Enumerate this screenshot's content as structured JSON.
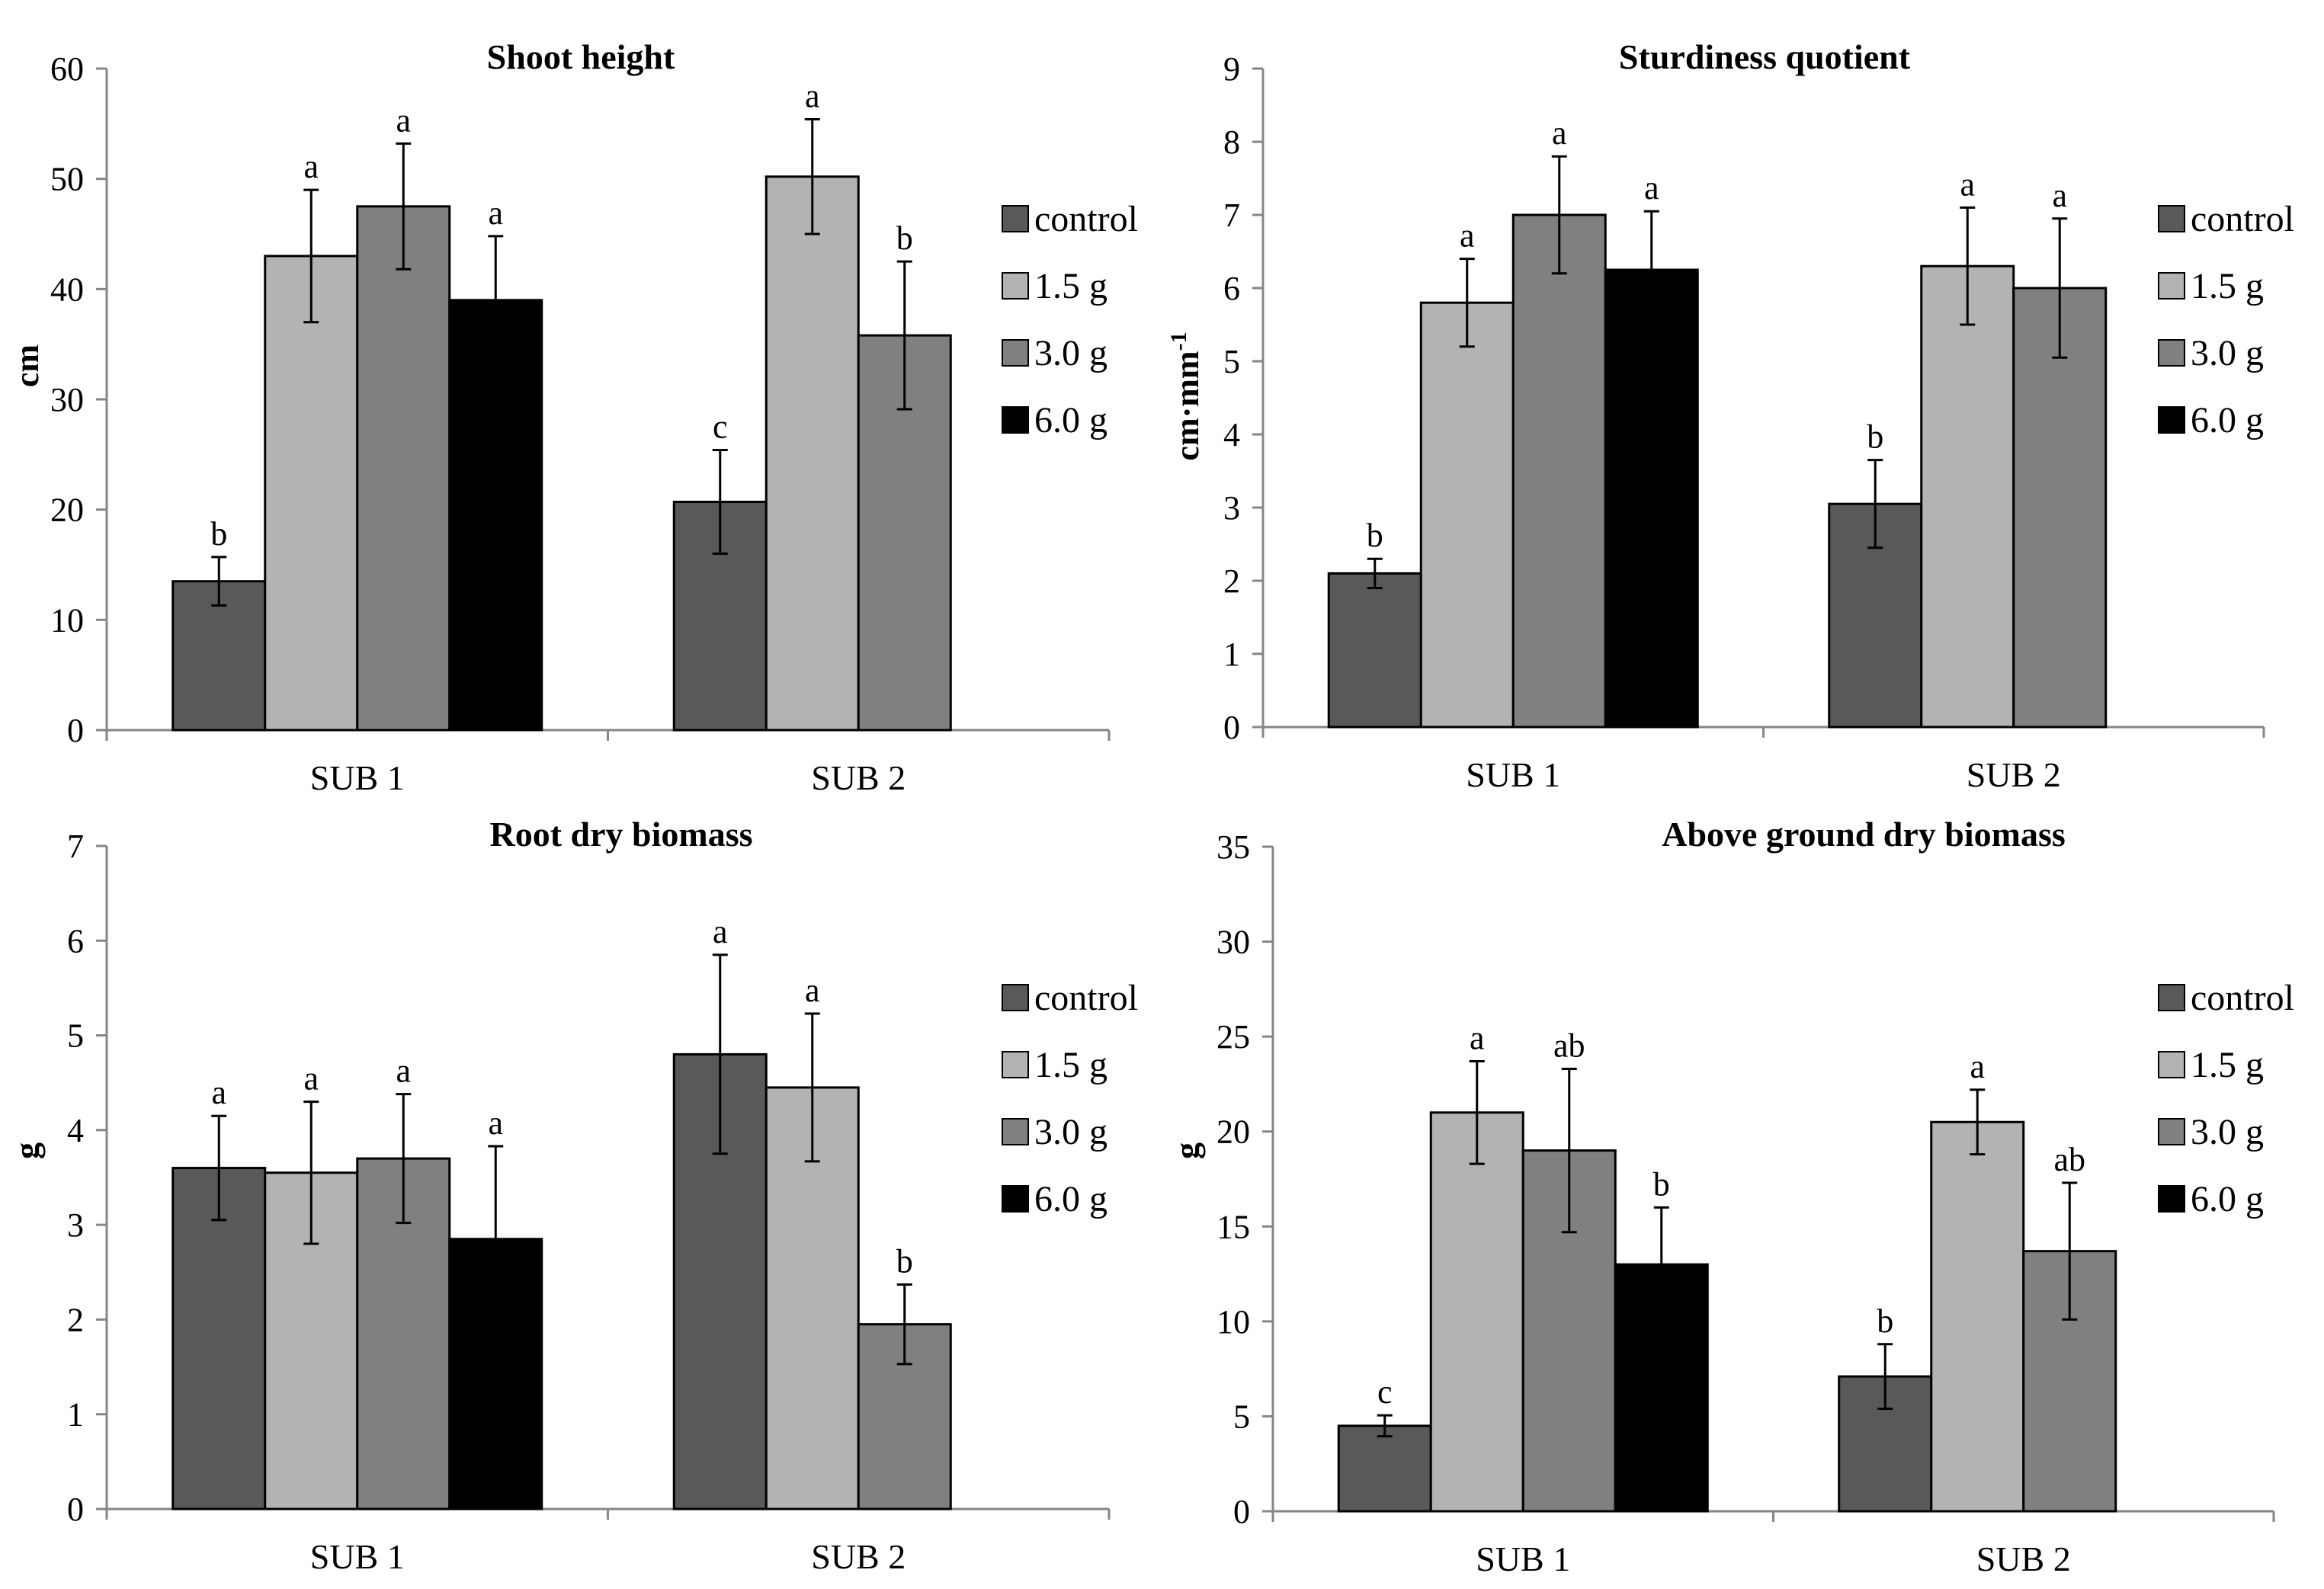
{
  "chart_data": [
    {
      "type": "bar",
      "title": "Shoot height",
      "xlabel": "",
      "ylabel": "cm",
      "ylabel_sup": "",
      "ylim": [
        0,
        60
      ],
      "yticks": [
        0,
        10,
        20,
        30,
        40,
        50,
        60
      ],
      "categories": [
        "SUB 1",
        "SUB 2"
      ],
      "series": [
        {
          "name": "control",
          "color": "#595959",
          "values": [
            13.5,
            20.7
          ],
          "errors": [
            2.2,
            4.7
          ],
          "letters": [
            "b",
            "c"
          ]
        },
        {
          "name": "1.5 g",
          "color": "#b3b3b3",
          "values": [
            43.0,
            50.2
          ],
          "errors": [
            6.0,
            5.2
          ],
          "letters": [
            "a",
            "a"
          ]
        },
        {
          "name": "3.0 g",
          "color": "#808080",
          "values": [
            47.5,
            35.8
          ],
          "errors": [
            5.7,
            6.7
          ],
          "letters": [
            "a",
            "b"
          ]
        },
        {
          "name": "6.0 g",
          "color": "#000000",
          "values": [
            39.0,
            null
          ],
          "errors": [
            5.8,
            null
          ],
          "letters": [
            "a",
            null
          ]
        }
      ]
    },
    {
      "type": "bar",
      "title": "Sturdiness quotient",
      "xlabel": "",
      "ylabel": "cm·mm",
      "ylabel_sup": "-1",
      "ylim": [
        0,
        9
      ],
      "yticks": [
        0,
        1,
        2,
        3,
        4,
        5,
        6,
        7,
        8,
        9
      ],
      "categories": [
        "SUB 1",
        "SUB 2"
      ],
      "series": [
        {
          "name": "control",
          "color": "#595959",
          "values": [
            2.1,
            3.05
          ],
          "errors": [
            0.2,
            0.6
          ],
          "letters": [
            "b",
            "b"
          ]
        },
        {
          "name": "1.5 g",
          "color": "#b3b3b3",
          "values": [
            5.8,
            6.3
          ],
          "errors": [
            0.6,
            0.8
          ],
          "letters": [
            "a",
            "a"
          ]
        },
        {
          "name": "3.0 g",
          "color": "#808080",
          "values": [
            7.0,
            6.0
          ],
          "errors": [
            0.8,
            0.95
          ],
          "letters": [
            "a",
            "a"
          ]
        },
        {
          "name": "6.0 g",
          "color": "#000000",
          "values": [
            6.25,
            null
          ],
          "errors": [
            0.8,
            null
          ],
          "letters": [
            "a",
            null
          ]
        }
      ]
    },
    {
      "type": "bar",
      "title": "Root dry biomass",
      "xlabel": "",
      "ylabel": "g",
      "ylabel_sup": "",
      "ylim": [
        0,
        7
      ],
      "yticks": [
        0,
        1,
        2,
        3,
        4,
        5,
        6,
        7
      ],
      "categories": [
        "SUB 1",
        "SUB 2"
      ],
      "series": [
        {
          "name": "control",
          "color": "#595959",
          "values": [
            3.6,
            4.8
          ],
          "errors": [
            0.55,
            1.05
          ],
          "letters": [
            "a",
            "a"
          ]
        },
        {
          "name": "1.5 g",
          "color": "#b3b3b3",
          "values": [
            3.55,
            4.45
          ],
          "errors": [
            0.75,
            0.78
          ],
          "letters": [
            "a",
            "a"
          ]
        },
        {
          "name": "3.0 g",
          "color": "#808080",
          "values": [
            3.7,
            1.95
          ],
          "errors": [
            0.68,
            0.42
          ],
          "letters": [
            "a",
            "b"
          ]
        },
        {
          "name": "6.0 g",
          "color": "#000000",
          "values": [
            2.85,
            null
          ],
          "errors": [
            0.98,
            null
          ],
          "letters": [
            "a",
            null
          ]
        }
      ]
    },
    {
      "type": "bar",
      "title": "Above ground dry biomass",
      "xlabel": "",
      "ylabel": "g",
      "ylabel_sup": "",
      "ylim": [
        0,
        35
      ],
      "yticks": [
        0,
        5,
        10,
        15,
        20,
        25,
        30,
        35
      ],
      "categories": [
        "SUB 1",
        "SUB 2"
      ],
      "series": [
        {
          "name": "control",
          "color": "#595959",
          "values": [
            4.5,
            7.1
          ],
          "errors": [
            0.55,
            1.7
          ],
          "letters": [
            "c",
            "b"
          ]
        },
        {
          "name": "1.5 g",
          "color": "#b3b3b3",
          "values": [
            21.0,
            20.5
          ],
          "errors": [
            2.7,
            1.7
          ],
          "letters": [
            "a",
            "a"
          ]
        },
        {
          "name": "3.0 g",
          "color": "#808080",
          "values": [
            19.0,
            13.7
          ],
          "errors": [
            4.3,
            3.6
          ],
          "letters": [
            "ab",
            "ab"
          ]
        },
        {
          "name": "6.0 g",
          "color": "#000000",
          "values": [
            13.0,
            null
          ],
          "errors": [
            3.0,
            null
          ],
          "letters": [
            "b",
            null
          ]
        }
      ]
    }
  ]
}
